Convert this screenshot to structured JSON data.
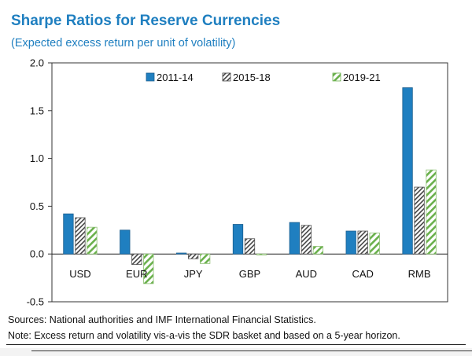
{
  "chart_data": {
    "type": "bar",
    "title": "Sharpe Ratios for Reserve Currencies",
    "subtitle": "(Expected excess return per unit of volatility)",
    "categories": [
      "USD",
      "EUR",
      "JPY",
      "GBP",
      "AUD",
      "CAD",
      "RMB"
    ],
    "series": [
      {
        "name": "2011-14",
        "values": [
          0.42,
          0.25,
          0.01,
          0.31,
          0.33,
          0.24,
          1.74
        ],
        "color": "#1f7fc0",
        "pattern": "solid"
      },
      {
        "name": "2015-18",
        "values": [
          0.38,
          -0.11,
          -0.05,
          0.16,
          0.3,
          0.24,
          0.7
        ],
        "color": "#555555",
        "pattern": "diagonal-hatch"
      },
      {
        "name": "2019-21",
        "values": [
          0.28,
          -0.31,
          -0.1,
          -0.01,
          0.08,
          0.22,
          0.88
        ],
        "color": "#6ab04c",
        "pattern": "diagonal-hatch-green"
      }
    ],
    "ylim": [
      -0.5,
      2.0
    ],
    "yticks": [
      "-0.5",
      "0.0",
      "0.5",
      "1.0",
      "1.5",
      "2.0"
    ],
    "xlabel": "",
    "ylabel": "",
    "legend_position": "top",
    "grid": false
  },
  "notes": {
    "sources": "Sources: National authorities and IMF International Financial Statistics.",
    "note": "Note: Excess return and volatility vis-a-vis the SDR basket and based on a 5-year horizon."
  }
}
